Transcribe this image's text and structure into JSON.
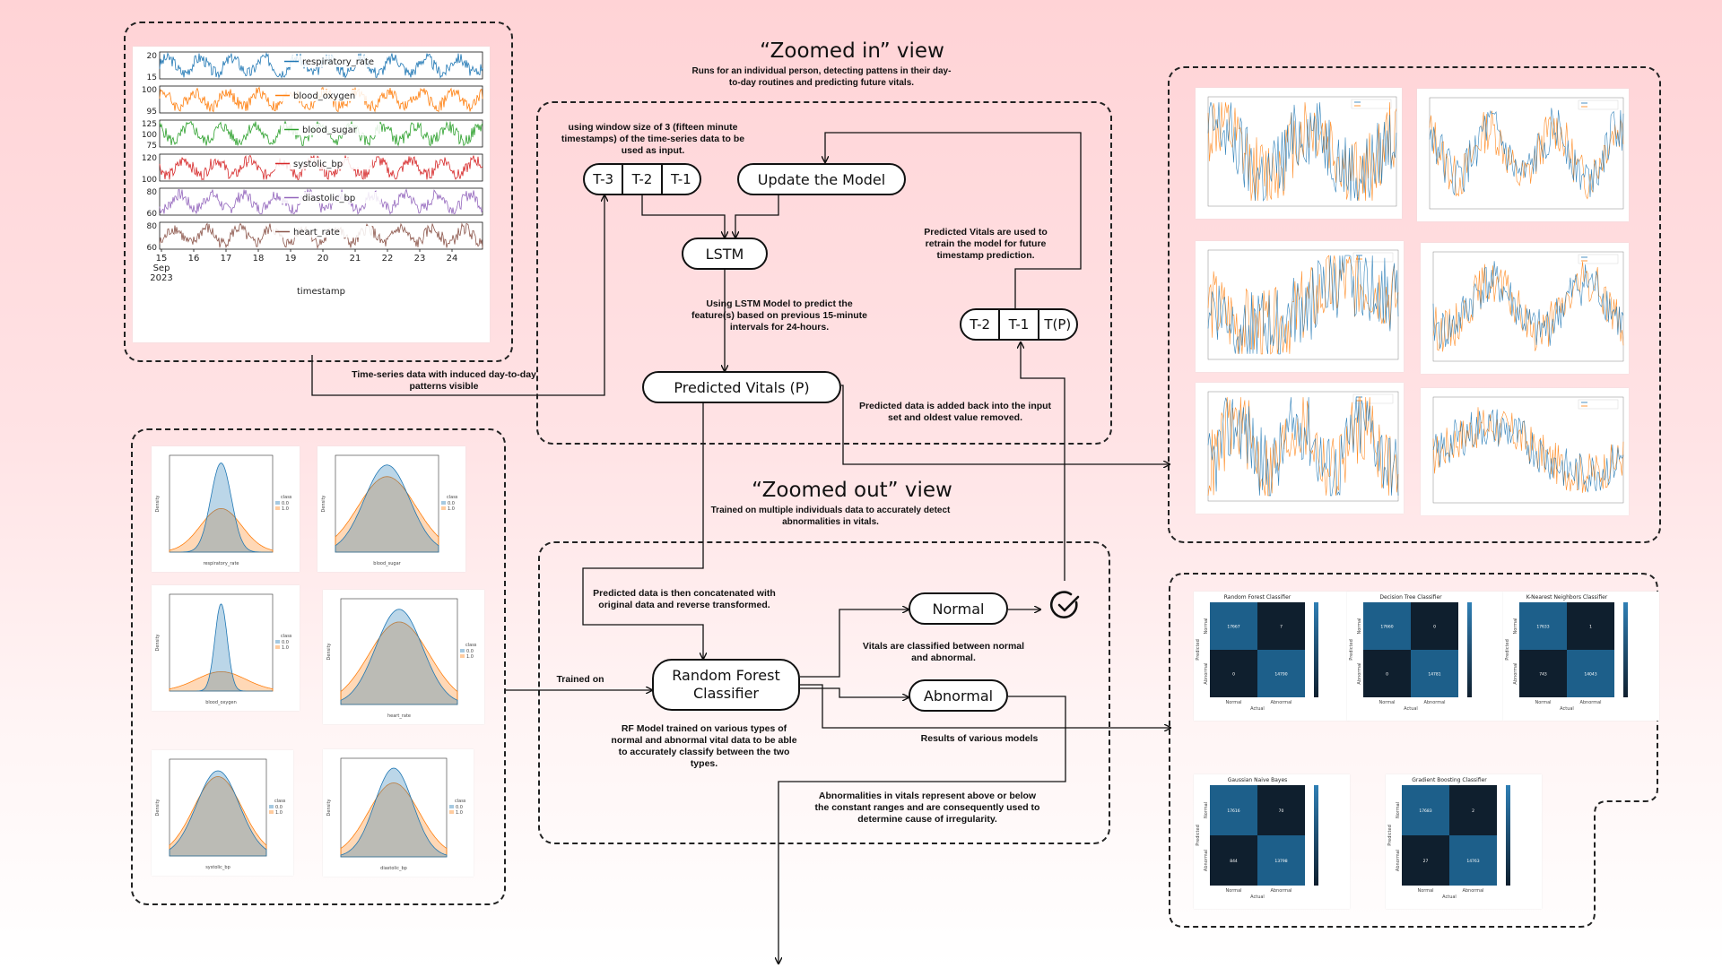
{
  "headings": {
    "zoomed_in_title": "“Zoomed in” view",
    "zoomed_in_subtitle": "Runs for an individual person, detecting pattens in their day-to-day routines and predicting future vitals.",
    "zoomed_out_title": "“Zoomed out” view",
    "zoomed_out_subtitle": "Trained on multiple individuals data to accurately detect abnormalities in vitals."
  },
  "nodes": {
    "window": [
      "T-3",
      "T-2",
      "T-1"
    ],
    "update_model": "Update the Model",
    "lstm": "LSTM",
    "predicted_vitals": "Predicted Vitals (P)",
    "next_window": [
      "T-2",
      "T-1",
      "T(P)"
    ],
    "random_forest": "Random Forest Classifier",
    "normal": "Normal",
    "abnormal": "Abnormal"
  },
  "notes": {
    "window_size": "using window size of 3 (fifteen minute timestamps) of the time-series data to be used as input.",
    "lstm_predict": "Using LSTM Model to predict the feature(s) based on previous 15-minute intervals for 24-hours.",
    "retrain": "Predicted Vitals are used to retrain the model for future timestamp prediction.",
    "added_back": "Predicted data is added back into the input set and oldest value removed.",
    "time_series": "Time-series data with induced day-to-day patterns visible",
    "concatenated": "Predicted data is then concatenated with original data and reverse transformed.",
    "trained_on": "Trained on",
    "classified": "Vitals are classified between normal and abnormal.",
    "rf_trained": "RF Model trained on various types of normal and abnormal vital data to be able to accurately classify between the two types.",
    "results": "Results of various models",
    "abnormal_note": "Abnormalities in vitals represent above or below the constant ranges and are consequently used to determine cause of irregularity."
  },
  "timeseries": {
    "xlabel": "timestamp",
    "x_ticks": [
      "15",
      "16",
      "17",
      "18",
      "19",
      "20",
      "21",
      "22",
      "23",
      "24"
    ],
    "x_first_sub": [
      "Sep",
      "2023"
    ],
    "series": [
      {
        "name": "respiratory_rate",
        "color": "#1f77b4",
        "ticks": [
          "20",
          "15"
        ]
      },
      {
        "name": "blood_oxygen",
        "color": "#ff7f0e",
        "ticks": [
          "100",
          "95"
        ]
      },
      {
        "name": "blood_sugar",
        "color": "#2ca02c",
        "ticks": [
          "125",
          "100",
          "75"
        ]
      },
      {
        "name": "systolic_bp",
        "color": "#d62728",
        "ticks": [
          "120",
          "100"
        ]
      },
      {
        "name": "diastolic_bp",
        "color": "#9467bd",
        "ticks": [
          "80",
          "60"
        ]
      },
      {
        "name": "heart_rate",
        "color": "#8c564b",
        "ticks": [
          "80",
          "60"
        ]
      }
    ]
  },
  "density_plots": [
    {
      "xlabel": "respiratory_rate",
      "legend_title": "class",
      "legend": [
        "0.0",
        "1.0"
      ]
    },
    {
      "xlabel": "blood_sugar",
      "legend_title": "class",
      "legend": [
        "0.0",
        "1.0"
      ]
    },
    {
      "xlabel": "blood_oxygen",
      "legend_title": "class",
      "legend": [
        "0.0",
        "1.0"
      ]
    },
    {
      "xlabel": "heart_rate",
      "legend_title": "class",
      "legend": [
        "0.0",
        "1.0"
      ]
    },
    {
      "xlabel": "systolic_bp",
      "legend_title": "class",
      "legend": [
        "0.0",
        "1.0"
      ]
    },
    {
      "xlabel": "diastolic_bp",
      "legend_title": "class",
      "legend": [
        "0.0",
        "1.0"
      ]
    }
  ],
  "confusion_matrices": [
    {
      "title": "Random Forest Classifier",
      "values": [
        [
          "17667",
          "7"
        ],
        [
          "0",
          "14790"
        ]
      ]
    },
    {
      "title": "Decision Tree Classifier",
      "values": [
        [
          "17660",
          "0"
        ],
        [
          "0",
          "14781"
        ]
      ]
    },
    {
      "title": "K-Nearest Neighbors Classifier",
      "values": [
        [
          "17633",
          "1"
        ],
        [
          "743",
          "14043"
        ]
      ]
    },
    {
      "title": "Gaussian Naive Bayes",
      "values": [
        [
          "17616",
          "70"
        ],
        [
          "844",
          "13798"
        ]
      ]
    },
    {
      "title": "Gradient Boosting Classifier",
      "values": [
        [
          "17683",
          "2"
        ],
        [
          "27",
          "14763"
        ]
      ]
    }
  ],
  "cm_labels": {
    "xlabel": "Actual",
    "ylabel": "Predicted",
    "classes": [
      "Normal",
      "Abnormal"
    ]
  },
  "colors": {
    "blue": "#1f77b4",
    "orange": "#ff7f0e",
    "cm_dark": "#0f1f2e",
    "cm_light": "#1d5f8a"
  }
}
